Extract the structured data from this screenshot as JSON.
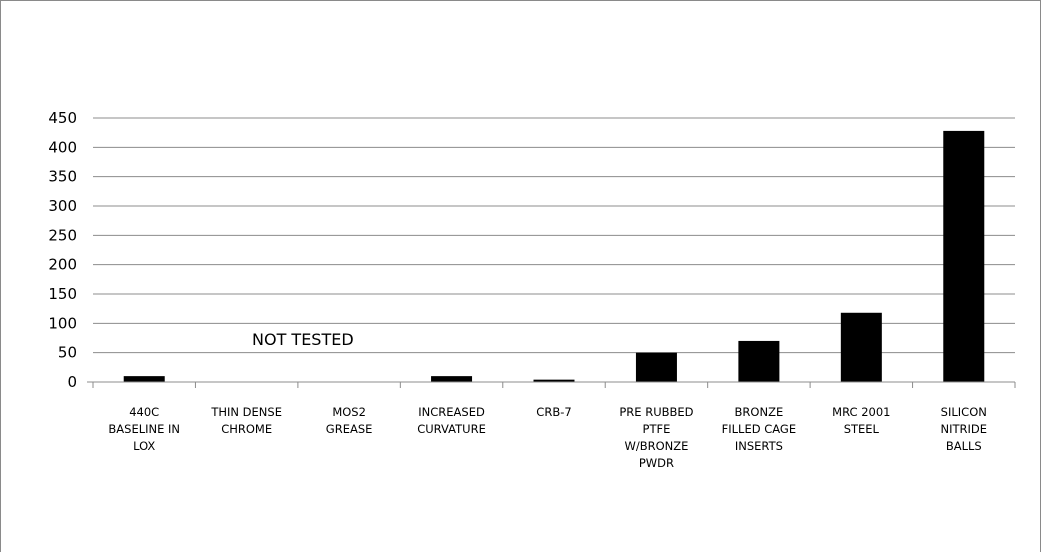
{
  "chart_data": {
    "type": "bar",
    "categories": [
      [
        "440C",
        "BASELINE IN",
        "LOX"
      ],
      [
        "THIN DENSE",
        "CHROME"
      ],
      [
        "MOS2",
        "GREASE"
      ],
      [
        "INCREASED",
        "CURVATURE"
      ],
      [
        "CRB-7"
      ],
      [
        "PRE RUBBED",
        "PTFE",
        "W/BRONZE",
        "PWDR"
      ],
      [
        "BRONZE",
        "FILLED CAGE",
        "INSERTS"
      ],
      [
        "MRC 2001",
        "STEEL"
      ],
      [
        "SILICON",
        "NITRIDE",
        "BALLS"
      ]
    ],
    "values": [
      10,
      0,
      0,
      10,
      4,
      50,
      70,
      118,
      428
    ],
    "ylim": [
      0,
      450
    ],
    "yticks": [
      "0",
      "50",
      "100",
      "150",
      "200",
      "250",
      "300",
      "350",
      "400",
      "450"
    ],
    "grid": true,
    "annotation": "NOT TESTED",
    "bar_color": "#000000",
    "grid_color": "#8c8c8c"
  }
}
